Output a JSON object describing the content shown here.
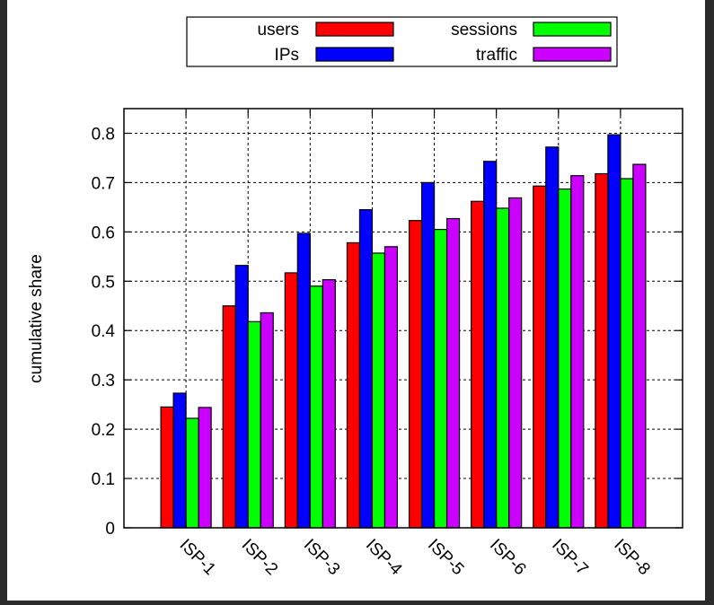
{
  "chart_data": {
    "type": "bar",
    "title": "",
    "xlabel": "",
    "ylabel": "cumulative share",
    "ylim": [
      0,
      0.85
    ],
    "yticks": [
      "0",
      "0.1",
      "0.2",
      "0.3",
      "0.4",
      "0.5",
      "0.6",
      "0.7",
      "0.8"
    ],
    "ytick_values": [
      0,
      0.1,
      0.2,
      0.3,
      0.4,
      0.5,
      0.6,
      0.7,
      0.8
    ],
    "categories": [
      "ISP-1",
      "ISP-2",
      "ISP-3",
      "ISP-4",
      "ISP-5",
      "ISP-6",
      "ISP-7",
      "ISP-8"
    ],
    "grid": true,
    "legend_position": "top-center",
    "series": [
      {
        "name": "users",
        "color": "#ff0000",
        "values": [
          0.245,
          0.45,
          0.517,
          0.578,
          0.623,
          0.662,
          0.693,
          0.718
        ]
      },
      {
        "name": "IPs",
        "color": "#0000ff",
        "values": [
          0.273,
          0.532,
          0.597,
          0.645,
          0.7,
          0.743,
          0.772,
          0.797
        ]
      },
      {
        "name": "sessions",
        "color": "#00ff00",
        "values": [
          0.222,
          0.418,
          0.49,
          0.557,
          0.605,
          0.648,
          0.687,
          0.708
        ]
      },
      {
        "name": "traffic",
        "color": "#cc00ff",
        "values": [
          0.244,
          0.436,
          0.503,
          0.57,
          0.627,
          0.669,
          0.714,
          0.737
        ]
      }
    ]
  }
}
